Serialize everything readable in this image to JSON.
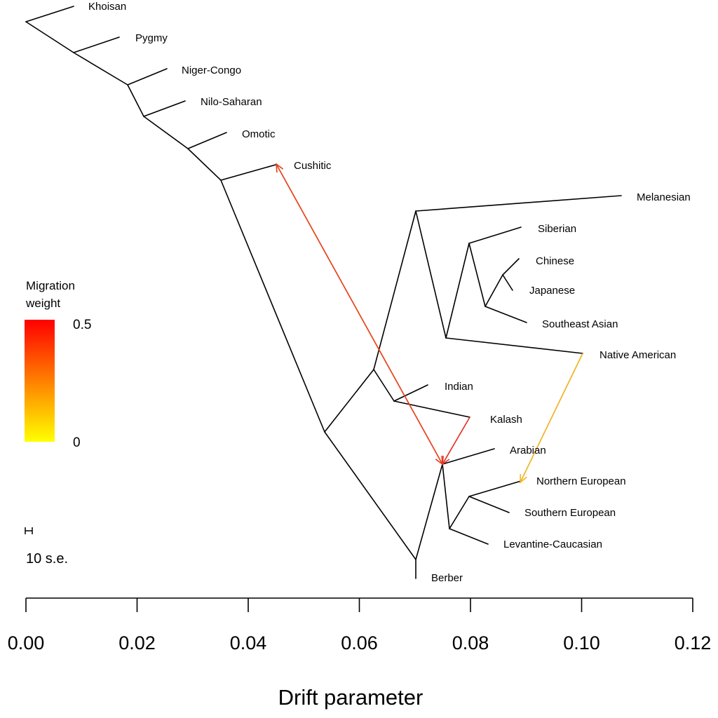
{
  "chart_data": {
    "type": "tree",
    "xlabel": "Drift parameter",
    "xlim": [
      0,
      0.12
    ],
    "x_ticks": [
      "0.00",
      "0.02",
      "0.04",
      "0.06",
      "0.08",
      "0.10",
      "0.12"
    ],
    "legend": {
      "title_line1": "Migration",
      "title_line2": "weight",
      "max_label": "0.5",
      "min_label": "0",
      "color_high": "#ff0000",
      "color_low": "#ffff00"
    },
    "scale_bar_label": "10 s.e.",
    "populations": [
      "Khoisan",
      "Pygmy",
      "Niger-Congo",
      "Nilo-Saharan",
      "Omotic",
      "Cushitic",
      "Melanesian",
      "Siberian",
      "Chinese",
      "Japanese",
      "Southeast Asian",
      "Native American",
      "Indian",
      "Kalash",
      "Arabian",
      "Northern European",
      "Southern European",
      "Levantine-Caucasian",
      "Berber"
    ],
    "migrations": [
      {
        "from": "Cushitic",
        "to": "Arabian/European ancestor",
        "weight": 0.46,
        "color": "#e8401c"
      },
      {
        "from": "Kalash",
        "to": "Arabian/European ancestor",
        "weight": 0.45,
        "color": "#e3342a"
      },
      {
        "from": "Native American",
        "to": "Northern European",
        "weight": 0.15,
        "color": "#f0b323"
      }
    ]
  }
}
